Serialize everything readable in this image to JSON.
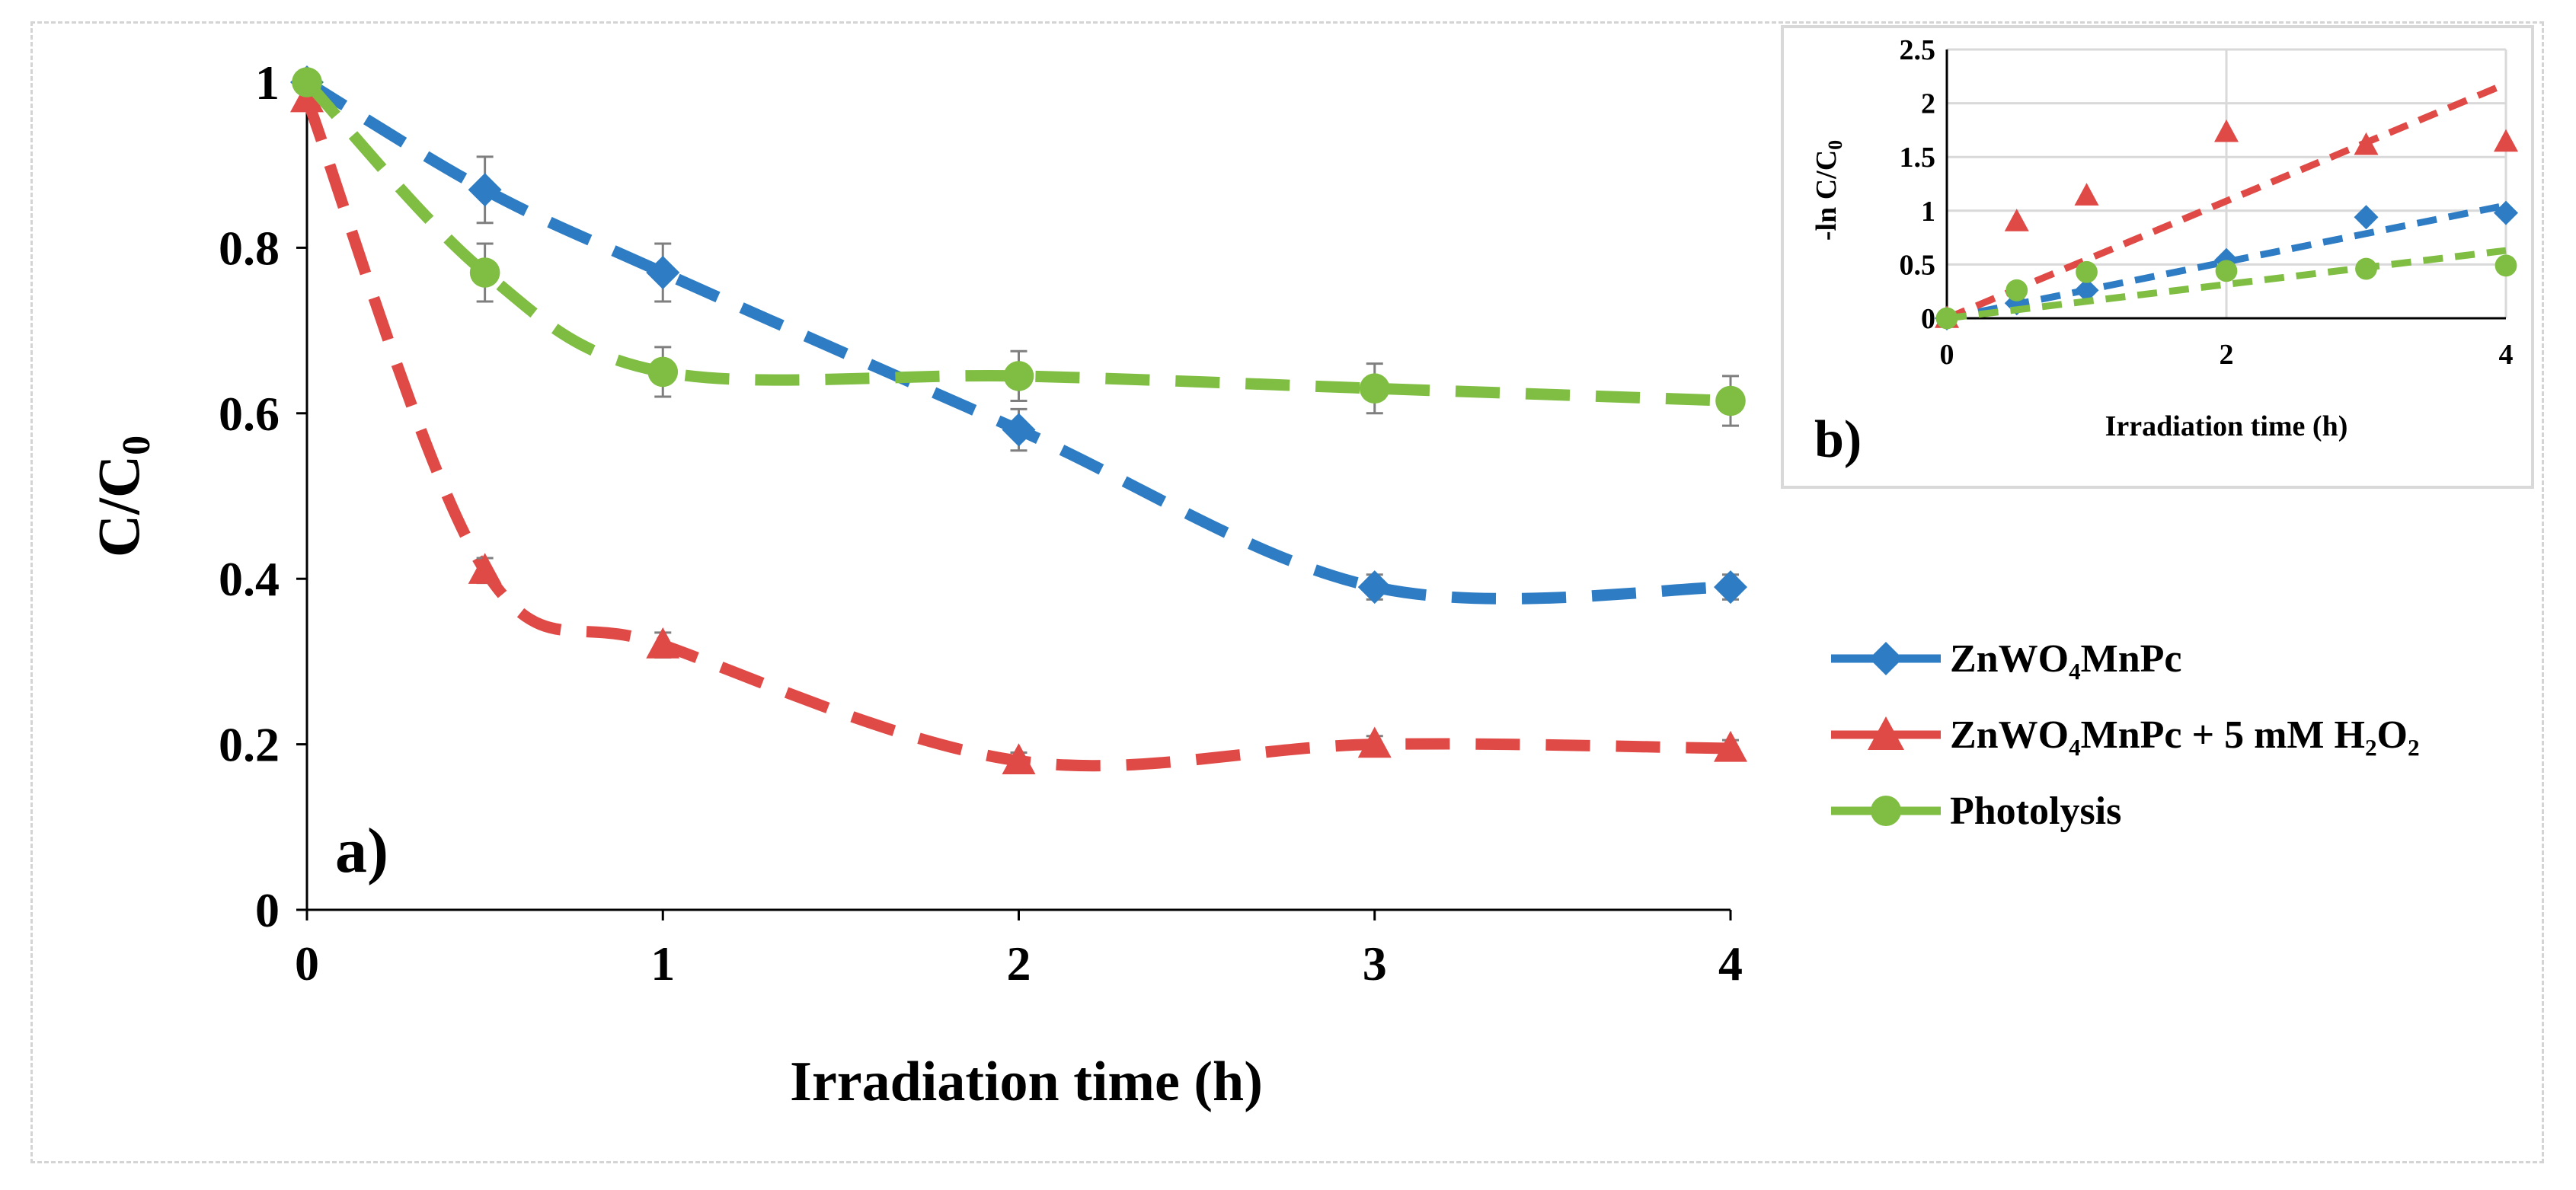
{
  "chart_data": [
    {
      "type": "line",
      "panel_label": "a)",
      "xlabel": "Irradiation time (h)",
      "ylabel_main": "C/C",
      "ylabel_sub": "0",
      "xlim": [
        0,
        4
      ],
      "ylim": [
        0,
        1
      ],
      "xticks": [
        "0",
        "1",
        "2",
        "3",
        "4"
      ],
      "yticks": [
        "0",
        "0.2",
        "0.4",
        "0.6",
        "0.8",
        "1"
      ],
      "x": [
        0,
        0.5,
        1,
        2,
        3,
        4
      ],
      "series": [
        {
          "name": "ZnWO₄MnPc",
          "color": "#2e7dc4",
          "marker": "diamond",
          "values": [
            1.0,
            0.87,
            0.77,
            0.58,
            0.39,
            0.39
          ],
          "errors": [
            0,
            0.04,
            0.035,
            0.025,
            0.015,
            0.015
          ]
        },
        {
          "name": "ZnWO₄MnPc + 5 mM H₂O₂",
          "color": "#e04a46",
          "marker": "triangle",
          "values": [
            0.98,
            0.41,
            0.32,
            0.18,
            0.2,
            0.195
          ],
          "errors": [
            0,
            0.015,
            0.015,
            0.01,
            0.01,
            0.01
          ]
        },
        {
          "name": "Photolysis",
          "color": "#80be43",
          "marker": "circle",
          "values": [
            1.0,
            0.77,
            0.65,
            0.645,
            0.63,
            0.615
          ],
          "errors": [
            0,
            0.035,
            0.03,
            0.03,
            0.03,
            0.03
          ]
        }
      ]
    },
    {
      "type": "scatter",
      "panel_label": "b)",
      "xlabel": "Irradiation  time (h)",
      "ylabel": "-ln C/C",
      "ylabel_sub": "0",
      "xlim": [
        0,
        4
      ],
      "ylim": [
        0,
        2.5
      ],
      "xticks": [
        "0",
        "2",
        "4"
      ],
      "yticks": [
        "0",
        "0.5",
        "1",
        "1.5",
        "2",
        "2.5"
      ],
      "x": [
        0,
        0.5,
        1,
        2,
        3,
        4
      ],
      "series": [
        {
          "name": "ZnWO₄MnPc",
          "color": "#2e7dc4",
          "marker": "diamond",
          "values": [
            0,
            0.14,
            0.26,
            0.54,
            0.94,
            0.98
          ],
          "fit": [
            0,
            1.05
          ]
        },
        {
          "name": "ZnWO₄MnPc + 5 mM H₂O₂",
          "color": "#e04a46",
          "marker": "triangle",
          "values": [
            0,
            0.9,
            1.14,
            1.73,
            1.61,
            1.64
          ],
          "fit": [
            0,
            2.18
          ]
        },
        {
          "name": "Photolysis",
          "color": "#80be43",
          "marker": "circle",
          "values": [
            0,
            0.26,
            0.43,
            0.44,
            0.46,
            0.49
          ],
          "fit": [
            0,
            0.63
          ]
        }
      ]
    }
  ],
  "legend": {
    "items": [
      {
        "label": "ZnWO₄MnPc",
        "color": "#2e7dc4",
        "marker": "diamond"
      },
      {
        "label": "ZnWO₄MnPc + 5 mM H₂O₂",
        "color": "#e04a46",
        "marker": "triangle"
      },
      {
        "label": "Photolysis",
        "color": "#80be43",
        "marker": "circle"
      }
    ]
  }
}
